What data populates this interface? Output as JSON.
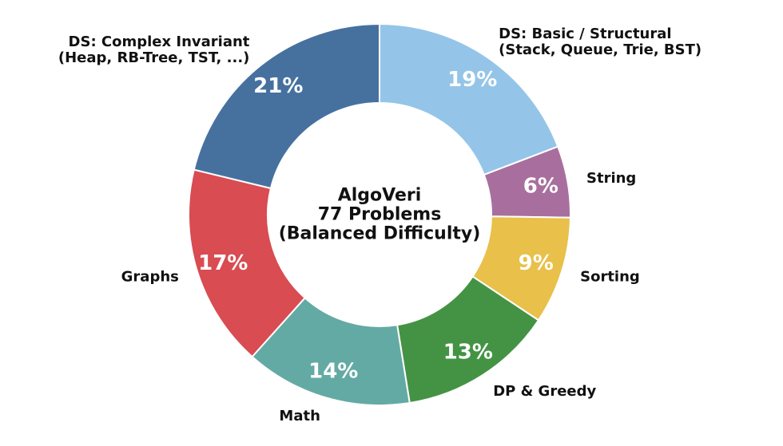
{
  "chart_data": {
    "type": "pie",
    "subtype": "donut",
    "title": "AlgoVeri 77 Problems (Balanced Difficulty)",
    "center_title_lines": [
      "AlgoVeri",
      "77 Problems",
      "(Balanced Difficulty)"
    ],
    "start_angle_deg": 90,
    "direction": "clockwise",
    "donut_hole_ratio": 0.585,
    "legend_position": "none",
    "grid": false,
    "background_color": "#ffffff",
    "pct_text_color": "#ffffff",
    "label_text_color": "#111111",
    "slices": [
      {
        "category": "DS: Basic / Structural (Stack, Queue, Trie, BST)",
        "label_lines": [
          "DS: Basic / Structural",
          "(Stack, Queue, Trie, BST)"
        ],
        "pct_label": "19%",
        "value": 19,
        "color": "#94c5e8"
      },
      {
        "category": "String",
        "label_lines": [
          "String"
        ],
        "pct_label": "6%",
        "value": 6,
        "color": "#a86f9e"
      },
      {
        "category": "Sorting",
        "label_lines": [
          "Sorting"
        ],
        "pct_label": "9%",
        "value": 9,
        "color": "#e8c04a"
      },
      {
        "category": "DP & Greedy",
        "label_lines": [
          "DP & Greedy"
        ],
        "pct_label": "13%",
        "value": 13,
        "color": "#449344"
      },
      {
        "category": "Math",
        "label_lines": [
          "Math"
        ],
        "pct_label": "14%",
        "value": 14,
        "color": "#64aaa4"
      },
      {
        "category": "Graphs",
        "label_lines": [
          "Graphs"
        ],
        "pct_label": "17%",
        "value": 17,
        "color": "#d84c52"
      },
      {
        "category": "DS: Complex Invariant (Heap, RB-Tree, TST, ...)",
        "label_lines": [
          "DS: Complex Invariant",
          "(Heap, RB-Tree, TST, ...)"
        ],
        "pct_label": "21%",
        "value": 21,
        "color": "#46719f"
      }
    ]
  }
}
